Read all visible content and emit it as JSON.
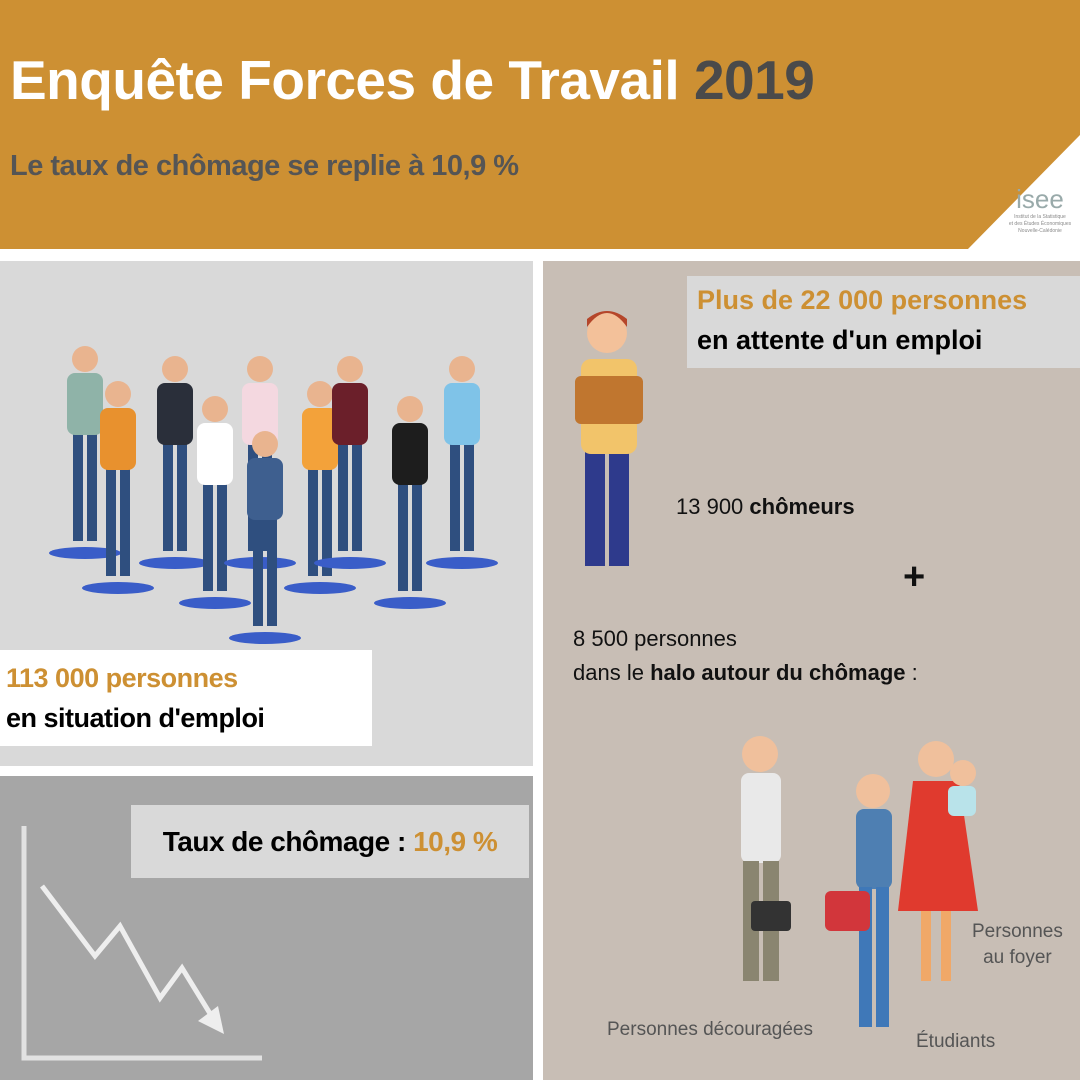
{
  "header": {
    "title": "Enquête Forces de Travail",
    "year": "2019",
    "subtitle": "Le taux de chômage se replie à 10,9 %"
  },
  "logo": {
    "name": "isee",
    "line1": "Institut de la Statistique",
    "line2": "et des Études Économiques",
    "line3": "Nouvelle-Calédonie"
  },
  "employment": {
    "count": "113 000 personnes",
    "label": "en situation d'emploi"
  },
  "rate": {
    "label": "Taux de chômage : ",
    "value": "10,9 %"
  },
  "waiting": {
    "headline": "Plus de 22 000 personnes",
    "label": "en attente d'un emploi",
    "unemployed_count": "13 900 ",
    "unemployed_label": "chômeurs",
    "plus": "+",
    "halo_count": "8 500 personnes",
    "halo_prefix": "dans le ",
    "halo_bold": "halo autour du chômage",
    "halo_suffix": " :",
    "groups": {
      "discouraged": "Personnes découragées",
      "students": "Étudiants",
      "home1": "Personnes",
      "home2": "au foyer"
    }
  },
  "colors": {
    "gold": "#CD9033",
    "dark": "#4a4a4a",
    "panel_gray": "#d9d9d9",
    "panel_taupe": "#c8beb5",
    "panel_dark": "#a6a6a6",
    "shadow_blue": "#3a5dc8"
  }
}
